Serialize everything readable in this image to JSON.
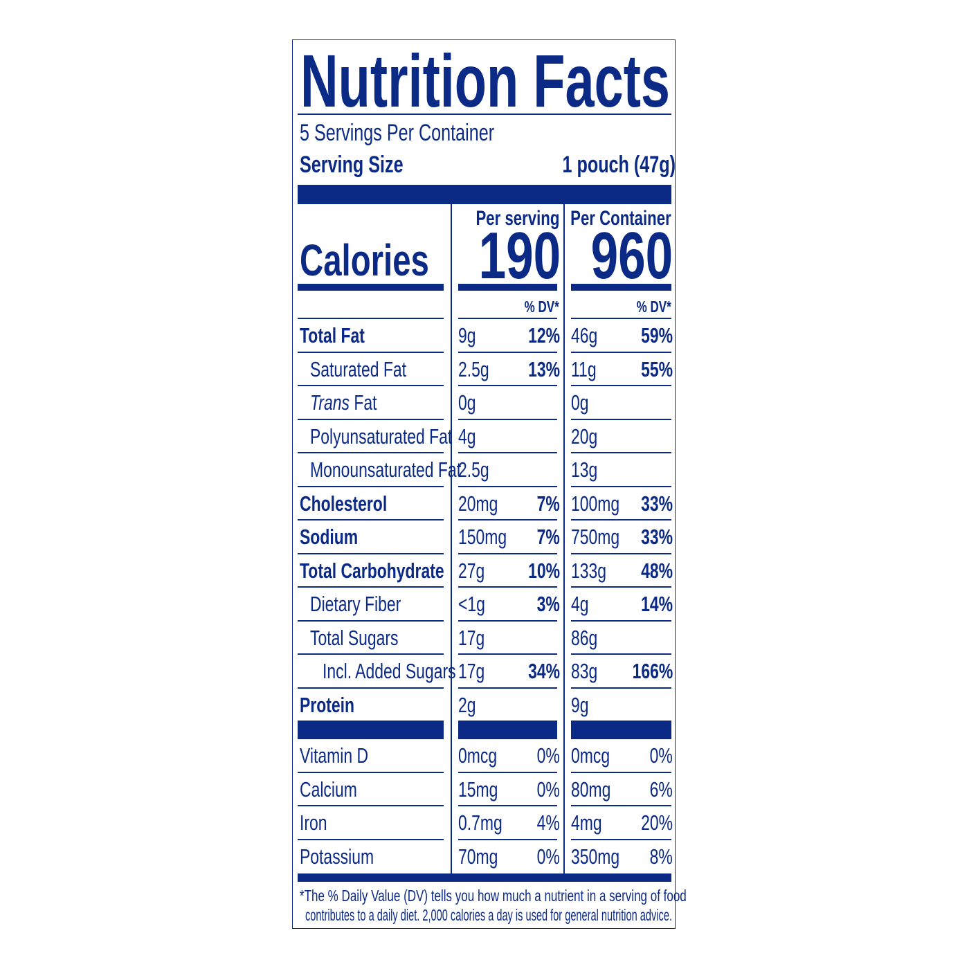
{
  "title": "Nutrition Facts",
  "servings_per_container": "5 Servings Per Container",
  "serving_size_label": "Serving Size",
  "serving_size_value": "1 pouch (47g)",
  "calories": {
    "label": "Calories",
    "per_serving_label": "Per serving",
    "per_serving_value": "190",
    "per_container_label": "Per Container",
    "per_container_value": "960",
    "dv_header": "% DV*"
  },
  "nutrients": [
    {
      "name": "Total Fat",
      "bold": true,
      "indent": 0,
      "serving": "9g",
      "serving_dv": "12%",
      "container": "46g",
      "container_dv": "59%"
    },
    {
      "name": "Saturated Fat",
      "bold": false,
      "indent": 1,
      "serving": "2.5g",
      "serving_dv": "13%",
      "container": "11g",
      "container_dv": "55%"
    },
    {
      "name": "Trans",
      "name_suffix": " Fat",
      "italic_prefix": true,
      "bold": false,
      "indent": 1,
      "serving": "0g",
      "serving_dv": "",
      "container": "0g",
      "container_dv": ""
    },
    {
      "name": "Polyunsaturated Fat",
      "bold": false,
      "indent": 1,
      "serving": "4g",
      "serving_dv": "",
      "container": "20g",
      "container_dv": ""
    },
    {
      "name": "Monounsaturated Fat",
      "bold": false,
      "indent": 1,
      "serving": "2.5g",
      "serving_dv": "",
      "container": "13g",
      "container_dv": ""
    },
    {
      "name": "Cholesterol",
      "bold": true,
      "indent": 0,
      "serving": "20mg",
      "serving_dv": "7%",
      "container": "100mg",
      "container_dv": "33%"
    },
    {
      "name": "Sodium",
      "bold": true,
      "indent": 0,
      "serving": "150mg",
      "serving_dv": "7%",
      "container": "750mg",
      "container_dv": "33%"
    },
    {
      "name": "Total Carbohydrate",
      "bold": true,
      "indent": 0,
      "serving": "27g",
      "serving_dv": "10%",
      "container": "133g",
      "container_dv": "48%"
    },
    {
      "name": "Dietary Fiber",
      "bold": false,
      "indent": 1,
      "serving": "<1g",
      "serving_dv": "3%",
      "container": "4g",
      "container_dv": "14%"
    },
    {
      "name": "Total Sugars",
      "bold": false,
      "indent": 1,
      "serving": "17g",
      "serving_dv": "",
      "container": "86g",
      "container_dv": ""
    },
    {
      "name": "Incl. Added Sugars",
      "bold": false,
      "indent": 2,
      "serving": "17g",
      "serving_dv": "34%",
      "container": "83g",
      "container_dv": "166%"
    },
    {
      "name": "Protein",
      "bold": true,
      "indent": 0,
      "serving": "2g",
      "serving_dv": "",
      "container": "9g",
      "container_dv": ""
    }
  ],
  "vitamins": [
    {
      "name": "Vitamin D",
      "serving": "0mcg",
      "serving_dv": "0%",
      "container": "0mcg",
      "container_dv": "0%"
    },
    {
      "name": "Calcium",
      "serving": "15mg",
      "serving_dv": "0%",
      "container": "80mg",
      "container_dv": "6%"
    },
    {
      "name": "Iron",
      "serving": "0.7mg",
      "serving_dv": "4%",
      "container": "4mg",
      "container_dv": "20%"
    },
    {
      "name": "Potassium",
      "serving": "70mg",
      "serving_dv": "0%",
      "container": "350mg",
      "container_dv": "8%"
    }
  ],
  "footnote": {
    "line1": "*The % Daily Value (DV) tells you how much a nutrient in a serving of food",
    "line2": "contributes to a daily diet. 2,000 calories a day is used for general nutrition advice."
  },
  "colors": {
    "ink": "#0b2a86",
    "background": "#ffffff"
  }
}
